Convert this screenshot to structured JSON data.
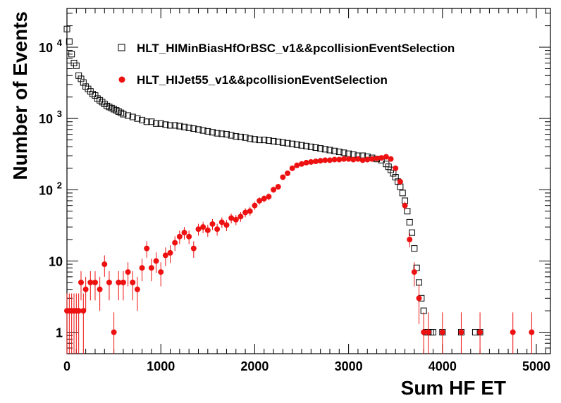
{
  "chart_data": {
    "type": "scatter",
    "xlabel": "Sum HF ET",
    "ylabel": "Number of Events",
    "xlim": [
      0,
      5150
    ],
    "ylim": [
      0.5,
      35000
    ],
    "yscale": "log",
    "x_ticks": [
      {
        "v": 0,
        "label": "0"
      },
      {
        "v": 1000,
        "label": "1000"
      },
      {
        "v": 2000,
        "label": "2000"
      },
      {
        "v": 3000,
        "label": "3000"
      },
      {
        "v": 4000,
        "label": "4000"
      },
      {
        "v": 5000,
        "label": "5000"
      }
    ],
    "y_ticks": [
      {
        "v": 1,
        "label": "1",
        "sup": ""
      },
      {
        "v": 10,
        "label": "10",
        "sup": ""
      },
      {
        "v": 100,
        "label": "10",
        "sup": "2"
      },
      {
        "v": 1000,
        "label": "10",
        "sup": "3"
      },
      {
        "v": 10000,
        "label": "10",
        "sup": "4"
      }
    ],
    "legend_position": "top-right",
    "series": [
      {
        "name": "HLT_HIMinBiasHfOrBSC_v1&&pcollisionEventSelection",
        "marker": "open-square",
        "color": "#000000",
        "x": [
          0,
          25,
          50,
          75,
          100,
          125,
          150,
          175,
          200,
          225,
          250,
          275,
          300,
          325,
          350,
          375,
          400,
          425,
          450,
          475,
          500,
          525,
          550,
          575,
          600,
          650,
          700,
          750,
          800,
          850,
          900,
          950,
          1000,
          1050,
          1100,
          1150,
          1200,
          1250,
          1300,
          1350,
          1400,
          1450,
          1500,
          1550,
          1600,
          1650,
          1700,
          1750,
          1800,
          1850,
          1900,
          1950,
          2000,
          2050,
          2100,
          2150,
          2200,
          2250,
          2300,
          2350,
          2400,
          2450,
          2500,
          2550,
          2600,
          2650,
          2700,
          2750,
          2800,
          2850,
          2900,
          2950,
          3000,
          3050,
          3100,
          3150,
          3200,
          3250,
          3300,
          3350,
          3400,
          3425,
          3450,
          3475,
          3500,
          3525,
          3550,
          3575,
          3600,
          3625,
          3650,
          3675,
          3700,
          3725,
          3750,
          3775,
          3800,
          3825,
          3850,
          3875,
          3900,
          4000,
          4200,
          4350,
          4400
        ],
        "y": [
          18000,
          12000,
          8000,
          6000,
          5500,
          4000,
          3600,
          3200,
          2800,
          2600,
          2400,
          2200,
          2100,
          1900,
          1800,
          1700,
          1600,
          1500,
          1450,
          1400,
          1350,
          1300,
          1250,
          1200,
          1150,
          1100,
          1050,
          1000,
          950,
          900,
          900,
          850,
          850,
          820,
          800,
          800,
          780,
          760,
          740,
          720,
          700,
          680,
          660,
          640,
          620,
          610,
          600,
          580,
          560,
          550,
          540,
          520,
          510,
          500,
          500,
          490,
          480,
          470,
          460,
          450,
          440,
          430,
          420,
          410,
          400,
          390,
          380,
          370,
          360,
          350,
          340,
          330,
          320,
          310,
          300,
          300,
          290,
          280,
          270,
          260,
          230,
          210,
          190,
          170,
          150,
          130,
          110,
          90,
          70,
          50,
          35,
          25,
          15,
          8,
          5,
          3,
          2,
          1,
          1,
          1,
          1,
          1,
          1,
          1,
          1
        ],
        "yerr": [
          0,
          0,
          0,
          0,
          0,
          0,
          0,
          0,
          0,
          0,
          0,
          0,
          0,
          0,
          0,
          0,
          0,
          0,
          0,
          0,
          0,
          0,
          0,
          0,
          0,
          0,
          0,
          0,
          0,
          0,
          0,
          0,
          0,
          0,
          0,
          0,
          0,
          0,
          0,
          0,
          0,
          0,
          0,
          0,
          0,
          0,
          0,
          0,
          0,
          0,
          0,
          0,
          0,
          0,
          0,
          0,
          0,
          0,
          0,
          0,
          0,
          0,
          0,
          0,
          0,
          0,
          0,
          0,
          0,
          0,
          0,
          0,
          0,
          0,
          0,
          0,
          0,
          0,
          0,
          0,
          0,
          0,
          0,
          0,
          0,
          0,
          0,
          0,
          0,
          0,
          0,
          0,
          0,
          0,
          0,
          0,
          0,
          0,
          0,
          0,
          0,
          0,
          0,
          0,
          0
        ]
      },
      {
        "name": "HLT_HIJet55_v1&&pcollisionEventSelection",
        "marker": "filled-circle",
        "color": "#ee1111",
        "x": [
          0,
          25,
          50,
          75,
          100,
          125,
          150,
          175,
          200,
          250,
          300,
          350,
          400,
          450,
          500,
          550,
          600,
          650,
          700,
          750,
          800,
          850,
          900,
          950,
          1000,
          1050,
          1100,
          1150,
          1200,
          1250,
          1300,
          1350,
          1400,
          1450,
          1500,
          1550,
          1600,
          1650,
          1700,
          1750,
          1800,
          1850,
          1900,
          1950,
          2000,
          2050,
          2100,
          2150,
          2200,
          2250,
          2300,
          2350,
          2400,
          2450,
          2500,
          2550,
          2600,
          2650,
          2700,
          2750,
          2800,
          2850,
          2900,
          2950,
          3000,
          3050,
          3100,
          3150,
          3200,
          3250,
          3300,
          3350,
          3400,
          3450,
          3500,
          3550,
          3600,
          3650,
          3700,
          3750,
          3800,
          3850,
          4000,
          4200,
          4400,
          4750,
          4950
        ],
        "y": [
          2,
          2,
          2,
          2,
          2,
          2,
          5,
          2,
          4,
          5,
          5,
          4,
          9,
          5,
          1,
          5,
          5,
          7,
          5,
          4,
          8,
          15,
          8,
          10,
          7,
          12,
          13,
          18,
          22,
          25,
          22,
          15,
          28,
          30,
          27,
          33,
          28,
          35,
          32,
          40,
          38,
          42,
          48,
          50,
          60,
          70,
          75,
          80,
          100,
          110,
          150,
          170,
          200,
          220,
          230,
          240,
          245,
          250,
          255,
          260,
          260,
          265,
          265,
          270,
          270,
          265,
          270,
          260,
          265,
          270,
          275,
          280,
          290,
          270,
          200,
          130,
          60,
          20,
          7,
          3,
          1,
          1,
          1,
          1,
          1,
          1,
          1
        ],
        "yerr": [
          1.5,
          1.5,
          1.5,
          1.5,
          1.5,
          1.5,
          2.2,
          1.5,
          2,
          2.2,
          2.2,
          2,
          3,
          2.2,
          0.9,
          2.2,
          2.2,
          2.6,
          2.2,
          2,
          2.8,
          3.9,
          2.8,
          3.2,
          2.6,
          3.5,
          3.6,
          4.2,
          4.7,
          5,
          4.7,
          3.9,
          5.3,
          5.5,
          5.2,
          5.7,
          5.3,
          5.9,
          5.7,
          6.3,
          6.2,
          6.5,
          6.9,
          7.1,
          7.7,
          8.4,
          8.7,
          8.9,
          10,
          10.5,
          12.2,
          13,
          14.1,
          14.8,
          15.2,
          15.5,
          15.7,
          15.8,
          16,
          16.1,
          16.1,
          16.3,
          16.3,
          16.4,
          16.4,
          16.3,
          16.4,
          16.1,
          16.3,
          16.4,
          16.6,
          16.7,
          17,
          16.4,
          14.1,
          11.4,
          7.7,
          4.5,
          2.6,
          1.7,
          0.9,
          0.9,
          0.9,
          0.9,
          0.9,
          0.9,
          0.9
        ]
      }
    ]
  }
}
